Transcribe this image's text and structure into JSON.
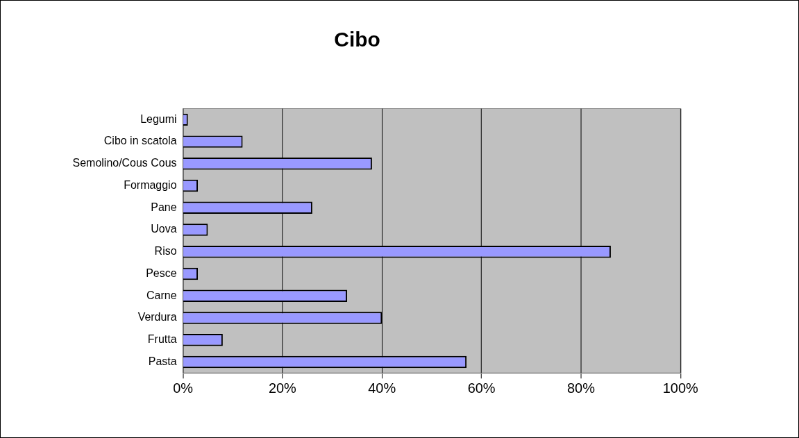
{
  "chart_data": {
    "type": "bar",
    "title": "Cibo",
    "orientation": "horizontal",
    "categories": [
      "Legumi",
      "Cibo in scatola",
      "Semolino/Cous Cous",
      "Formaggio",
      "Pane",
      "Uova",
      "Riso",
      "Pesce",
      "Carne",
      "Verdura",
      "Frutta",
      "Pasta"
    ],
    "values": [
      1,
      12,
      38,
      3,
      26,
      5,
      86,
      3,
      33,
      40,
      8,
      57
    ],
    "color": "#9999ff",
    "xlim": [
      0,
      100
    ],
    "xticks": [
      {
        "value": 0,
        "label": "0%"
      },
      {
        "value": 20,
        "label": "20%"
      },
      {
        "value": 40,
        "label": "40%"
      },
      {
        "value": 60,
        "label": "60%"
      },
      {
        "value": 80,
        "label": "80%"
      },
      {
        "value": 100,
        "label": "100%"
      }
    ],
    "grid": "x",
    "legend": false
  }
}
